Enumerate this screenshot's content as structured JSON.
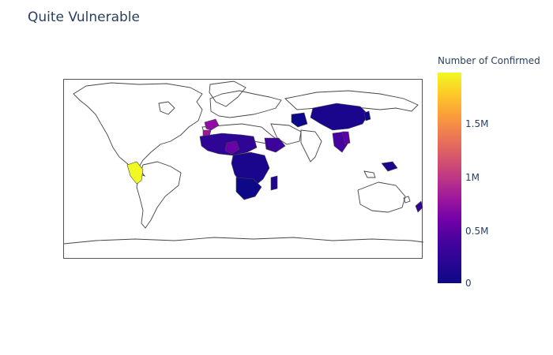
{
  "title": "Quite Vulnerable",
  "colorbar": {
    "title": "Number of Confirmed",
    "ticks": [
      "1.5M",
      "1M",
      "0.5M",
      "0"
    ],
    "max_value": 1960000,
    "colorscale": [
      "#0d0887",
      "#46039f",
      "#7201a8",
      "#9c179e",
      "#bd3786",
      "#d8576b",
      "#ed7953",
      "#fb9f3a",
      "#fdca26",
      "#f0f921"
    ]
  },
  "map": {
    "projection": "equirectangular",
    "lataxis_range": [
      -60,
      90
    ],
    "land_outline_color": "#444444"
  }
}
